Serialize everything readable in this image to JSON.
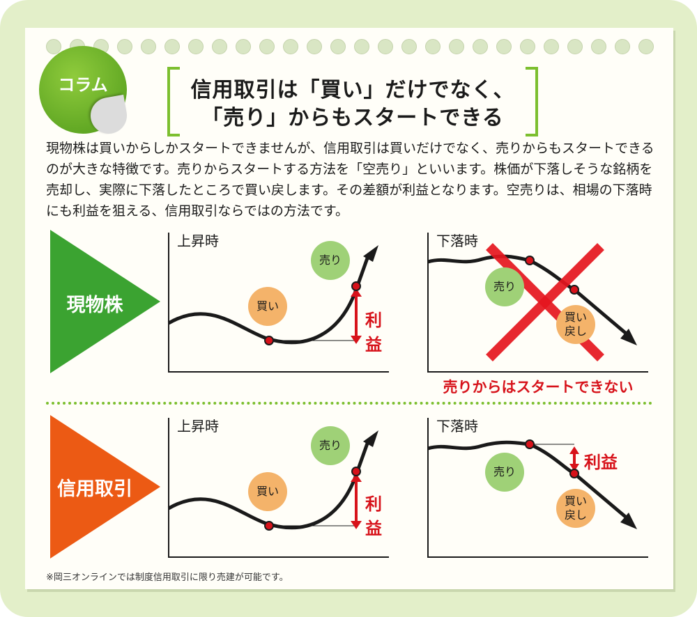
{
  "badge": {
    "label": "コラム"
  },
  "title": {
    "line1": "信用取引は「買い」だけでなく、",
    "line2": "「売り」からもスタートできる"
  },
  "intro": "現物株は買いからしかスタートできませんが、信用取引は買いだけでなく、売りからもスタートできるのが大きな特徴です。売りからスタートする方法を「空売り」といいます。株価が下落しそうな銘柄を売却し、実際に下落したところで買い戻します。その差額が利益となります。空売りは、相場の下落時にも利益を狙える、信用取引ならではの方法です。",
  "rows": {
    "spot": {
      "label": "現物株",
      "rising": {
        "title": "上昇時",
        "buy": "買い",
        "sell": "売り",
        "profit": "利益"
      },
      "falling": {
        "title": "下落時",
        "sell": "売り",
        "buyback": [
          "買い",
          "戻し"
        ],
        "note": "売りからはスタートできない"
      }
    },
    "margin": {
      "label": "信用取引",
      "rising": {
        "title": "上昇時",
        "buy": "買い",
        "sell": "売り",
        "profit": "利益"
      },
      "falling": {
        "title": "下落時",
        "sell": "売り",
        "buyback": [
          "買い",
          "戻し"
        ],
        "profit": "利益"
      }
    }
  },
  "footnote": "※岡三オンラインでは制度信用取引に限り売建が可能です。",
  "colors": {
    "green": "#3ba331",
    "orange": "#ec5a14",
    "accent_red": "#d7121a",
    "bubble_green": "#9fd177",
    "bubble_orange": "#f4b36a"
  }
}
